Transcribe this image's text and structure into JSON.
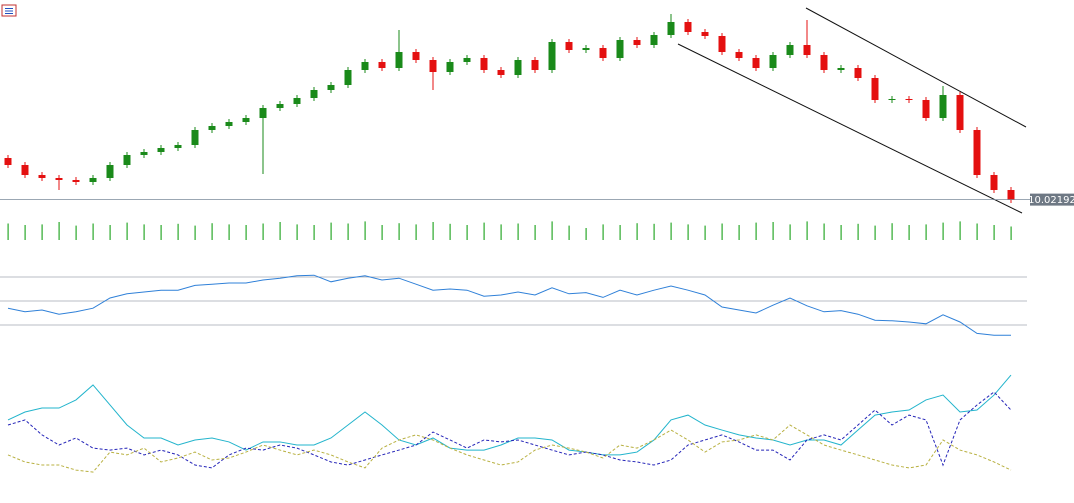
{
  "chart_data": [
    {
      "type": "candlestick",
      "up_color": "#1a8a1a",
      "down_color": "#e41010",
      "ylim": [
        9.945,
        11.02
      ],
      "last_price": 10.02192,
      "open": [
        10.23,
        10.195,
        10.145,
        10.13,
        10.12,
        10.11,
        10.13,
        10.195,
        10.245,
        10.26,
        10.28,
        10.295,
        10.37,
        10.39,
        10.41,
        10.43,
        10.48,
        10.5,
        10.53,
        10.57,
        10.595,
        10.67,
        10.71,
        10.68,
        10.76,
        10.72,
        10.66,
        10.71,
        10.73,
        10.67,
        10.645,
        10.72,
        10.67,
        10.81,
        10.77,
        10.78,
        10.73,
        10.82,
        10.795,
        10.845,
        10.91,
        10.86,
        10.84,
        10.76,
        10.73,
        10.68,
        10.745,
        10.795,
        10.745,
        10.67,
        10.68,
        10.63,
        10.52,
        10.525,
        10.52,
        10.43,
        10.545,
        10.37,
        10.145,
        10.07
      ],
      "high": [
        10.245,
        10.21,
        10.16,
        10.145,
        10.135,
        10.145,
        10.21,
        10.26,
        10.275,
        10.295,
        10.31,
        10.385,
        10.405,
        10.425,
        10.445,
        10.495,
        10.515,
        10.545,
        10.585,
        10.61,
        10.685,
        10.725,
        10.725,
        10.87,
        10.775,
        10.735,
        10.725,
        10.745,
        10.745,
        10.685,
        10.735,
        10.735,
        10.825,
        10.825,
        10.795,
        10.795,
        10.835,
        10.835,
        10.86,
        10.95,
        10.925,
        10.875,
        10.855,
        10.775,
        10.745,
        10.76,
        10.81,
        10.92,
        10.76,
        10.695,
        10.695,
        10.645,
        10.54,
        10.54,
        10.535,
        10.59,
        10.56,
        10.385,
        10.16,
        10.085
      ],
      "low": [
        10.18,
        10.13,
        10.115,
        10.07,
        10.095,
        10.095,
        10.115,
        10.18,
        10.23,
        10.245,
        10.265,
        10.28,
        10.355,
        10.375,
        10.395,
        10.15,
        10.465,
        10.485,
        10.515,
        10.555,
        10.58,
        10.655,
        10.665,
        10.665,
        10.705,
        10.57,
        10.645,
        10.695,
        10.655,
        10.63,
        10.63,
        10.655,
        10.655,
        10.755,
        10.755,
        10.715,
        10.715,
        10.78,
        10.78,
        10.83,
        10.845,
        10.825,
        10.745,
        10.715,
        10.665,
        10.665,
        10.73,
        10.73,
        10.655,
        10.655,
        10.615,
        10.505,
        10.505,
        10.505,
        10.415,
        10.415,
        10.355,
        10.13,
        10.055,
        10.005
      ],
      "close": [
        10.195,
        10.145,
        10.13,
        10.12,
        10.11,
        10.13,
        10.195,
        10.245,
        10.26,
        10.28,
        10.295,
        10.37,
        10.39,
        10.41,
        10.43,
        10.48,
        10.5,
        10.53,
        10.57,
        10.595,
        10.67,
        10.71,
        10.68,
        10.76,
        10.72,
        10.66,
        10.71,
        10.73,
        10.67,
        10.645,
        10.72,
        10.67,
        10.81,
        10.77,
        10.78,
        10.73,
        10.82,
        10.795,
        10.845,
        10.91,
        10.86,
        10.84,
        10.76,
        10.73,
        10.68,
        10.745,
        10.795,
        10.745,
        10.67,
        10.68,
        10.63,
        10.52,
        10.525,
        10.52,
        10.43,
        10.545,
        10.37,
        10.145,
        10.07,
        10.02192
      ]
    },
    {
      "type": "bar",
      "color": "#2aa82a",
      "ylim": [
        0,
        100
      ],
      "values": [
        55,
        50,
        52,
        60,
        48,
        55,
        50,
        58,
        52,
        50,
        54,
        48,
        56,
        52,
        50,
        55,
        60,
        52,
        50,
        58,
        55,
        62,
        50,
        56,
        52,
        60,
        54,
        50,
        58,
        52,
        55,
        50,
        62,
        48,
        40,
        52,
        50,
        56,
        54,
        58,
        52,
        48,
        55,
        50,
        58,
        60,
        52,
        62,
        55,
        50,
        54,
        48,
        56,
        50,
        52,
        58,
        62,
        55,
        50,
        45
      ]
    },
    {
      "type": "line",
      "ylim": [
        20,
        80
      ],
      "levels": [
        30,
        50,
        70
      ],
      "level_color": "#b8bcc4",
      "series": [
        {
          "color": "#2f80d8",
          "dashed": false,
          "values": [
            44,
            41,
            42.5,
            39,
            41,
            44,
            52.5,
            56,
            57.5,
            59,
            59,
            63,
            64,
            65,
            65,
            67.5,
            69,
            71,
            71.5,
            66,
            69,
            71,
            67.5,
            69,
            64,
            59,
            60,
            59,
            54,
            55,
            57.5,
            55,
            61,
            56,
            57,
            53,
            59,
            55,
            59,
            62.5,
            59,
            55,
            45,
            42.5,
            40,
            46.5,
            52.5,
            46,
            41,
            42,
            39,
            34,
            33.5,
            32.5,
            31,
            38.5,
            32.5,
            23,
            21.5,
            21.5
          ]
        }
      ]
    },
    {
      "type": "line",
      "ylim": [
        0,
        50
      ],
      "series": [
        {
          "color": "#22b4cc",
          "dashed": false,
          "values": [
            27.3,
            30.9,
            32.7,
            32.7,
            36.4,
            43.2,
            34.1,
            25,
            19.1,
            19.1,
            15.9,
            18.2,
            19.1,
            17.3,
            13.6,
            17.3,
            17.3,
            15.9,
            15.9,
            19.1,
            25,
            30.9,
            25,
            18.2,
            15.9,
            19.1,
            14.5,
            13.6,
            13.6,
            15.9,
            19.1,
            19.1,
            18.2,
            13.6,
            12.7,
            11.4,
            11.4,
            12.7,
            18.2,
            27.3,
            29.5,
            25,
            22.7,
            20.5,
            19.1,
            18.2,
            15.9,
            18.2,
            18.2,
            15.9,
            22.7,
            29.5,
            30.9,
            31.8,
            36.4,
            38.6,
            30.9,
            31.8,
            38.6,
            47.7
          ]
        },
        {
          "color": "#2424b8",
          "dashed": true,
          "values": [
            25,
            27.3,
            20.5,
            15.9,
            19.1,
            14.5,
            13.6,
            14.5,
            11.4,
            13.6,
            11.4,
            6.8,
            5.5,
            11.4,
            14.5,
            13.6,
            15.9,
            14.5,
            11.4,
            8.2,
            6.8,
            9.1,
            11.4,
            13.6,
            15.9,
            21.8,
            18.2,
            14.5,
            18.2,
            17.3,
            18.2,
            15.9,
            13.6,
            11.4,
            12.7,
            11.4,
            9.1,
            8.2,
            6.8,
            9.1,
            15.9,
            18.2,
            20.5,
            17.3,
            13.6,
            13.6,
            9.1,
            18.2,
            20.5,
            18.2,
            25,
            31.8,
            25,
            29.5,
            27.3,
            6.8,
            27.3,
            34.1,
            40,
            31.8
          ]
        },
        {
          "color": "#b8b040",
          "dashed": true,
          "values": [
            11.4,
            8.2,
            6.8,
            6.8,
            4.5,
            3.6,
            12.7,
            11.4,
            14.5,
            8.2,
            10,
            12.7,
            9.1,
            10,
            12.7,
            15.9,
            13.6,
            11.4,
            13.6,
            11.4,
            8.2,
            5.5,
            14.5,
            18.2,
            20.5,
            18.2,
            14.5,
            11.4,
            9.1,
            6.8,
            8.2,
            13.6,
            15.9,
            14.5,
            12.7,
            10,
            15.9,
            14.5,
            18.2,
            22.7,
            18.2,
            12.7,
            17.3,
            18.2,
            20.5,
            18.2,
            25,
            20.5,
            15.9,
            13.6,
            11.4,
            9.1,
            6.8,
            5.5,
            6.8,
            18.2,
            13.6,
            11.4,
            8.2,
            4.5
          ]
        }
      ]
    }
  ]
}
